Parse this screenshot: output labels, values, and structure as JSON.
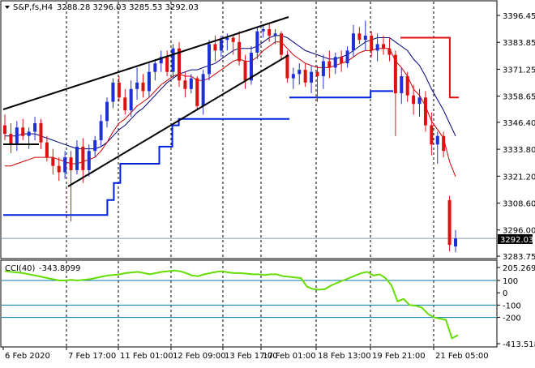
{
  "header": {
    "symbol_text": "S&P,fs,H4",
    "ohlc_text": "3288.28 3296.03 3285.53 3292.03"
  },
  "cci_header": {
    "label": "CCI(40)",
    "value": "-343.8099"
  },
  "colors": {
    "bull_candle": "#1f2fd6",
    "bear_candle": "#e01010",
    "ma_fast": "#cc0000",
    "ma_slow": "#00007a",
    "support_step": "#0020e0",
    "resistance_step": "#e01010",
    "trendline": "#000000",
    "cci_line": "#66dd00",
    "cci_level": "#0077aa",
    "grid_dashed": "#000000",
    "current_price_bg": "#000000",
    "current_price_fg": "#ffffff"
  },
  "chart_data": [
    {
      "type": "candlestick",
      "title": "S&P,fs,H4",
      "ylim": [
        3283.75,
        3396.45
      ],
      "y_ticks": [
        "3396.45",
        "3383.85",
        "3371.25",
        "3358.65",
        "3346.40",
        "3333.80",
        "3321.20",
        "3308.60",
        "3296.00",
        "3283.75"
      ],
      "current_price_label": "3292.03",
      "current_price": 3292.03,
      "x_labels": [
        "6 Feb 2020",
        "7 Feb 17:00",
        "11 Feb 01:00",
        "12 Feb 09:00",
        "13 Feb 17:00",
        "17 Feb 01:00",
        "18 Feb 13:00",
        "19 Feb 21:00",
        "21 Feb 05:00"
      ],
      "candles": [
        [
          3345,
          3350,
          3338,
          3341
        ],
        [
          3341,
          3346,
          3332,
          3336
        ],
        [
          3336,
          3347,
          3333,
          3344
        ],
        [
          3344,
          3348,
          3338,
          3340
        ],
        [
          3340,
          3344,
          3334,
          3342
        ],
        [
          3342,
          3349,
          3338,
          3346
        ],
        [
          3346,
          3348,
          3334,
          3337
        ],
        [
          3337,
          3340,
          3328,
          3330
        ],
        [
          3330,
          3334,
          3322,
          3326
        ],
        [
          3326,
          3330,
          3319,
          3323
        ],
        [
          3323,
          3333,
          3320,
          3330
        ],
        [
          3330,
          3333,
          3300,
          3324
        ],
        [
          3324,
          3338,
          3322,
          3335
        ],
        [
          3335,
          3339,
          3318,
          3324
        ],
        [
          3324,
          3336,
          3321,
          3333
        ],
        [
          3333,
          3340,
          3330,
          3338
        ],
        [
          3338,
          3350,
          3335,
          3347
        ],
        [
          3347,
          3358,
          3344,
          3356
        ],
        [
          3356,
          3367,
          3353,
          3365
        ],
        [
          3365,
          3368,
          3356,
          3358
        ],
        [
          3358,
          3362,
          3350,
          3352
        ],
        [
          3352,
          3366,
          3349,
          3362
        ],
        [
          3362,
          3372,
          3357,
          3365
        ],
        [
          3365,
          3369,
          3358,
          3361
        ],
        [
          3361,
          3374,
          3358,
          3370
        ],
        [
          3370,
          3376,
          3366,
          3374
        ],
        [
          3374,
          3380,
          3370,
          3377
        ],
        [
          3377,
          3380,
          3368,
          3370
        ],
        [
          3370,
          3383,
          3367,
          3381
        ],
        [
          3381,
          3384,
          3363,
          3366
        ],
        [
          3366,
          3370,
          3358,
          3362
        ],
        [
          3362,
          3369,
          3360,
          3367
        ],
        [
          3367,
          3368,
          3352,
          3354
        ],
        [
          3354,
          3371,
          3350,
          3369
        ],
        [
          3369,
          3385,
          3366,
          3383
        ],
        [
          3383,
          3387,
          3375,
          3380
        ],
        [
          3380,
          3387,
          3377,
          3385
        ],
        [
          3385,
          3388,
          3380,
          3386
        ],
        [
          3386,
          3387,
          3378,
          3384
        ],
        [
          3384,
          3389,
          3373,
          3375
        ],
        [
          3375,
          3378,
          3362,
          3366
        ],
        [
          3366,
          3382,
          3364,
          3379
        ],
        [
          3379,
          3391,
          3376,
          3389
        ],
        [
          3389,
          3392,
          3386,
          3390
        ],
        [
          3390,
          3393,
          3384,
          3387
        ],
        [
          3387,
          3390,
          3383,
          3388
        ],
        [
          3388,
          3389,
          3376,
          3378
        ],
        [
          3378,
          3380,
          3365,
          3367
        ],
        [
          3367,
          3372,
          3362,
          3369
        ],
        [
          3369,
          3374,
          3364,
          3371
        ],
        [
          3371,
          3374,
          3363,
          3365
        ],
        [
          3365,
          3373,
          3360,
          3370
        ],
        [
          3370,
          3373,
          3356,
          3368
        ],
        [
          3368,
          3378,
          3362,
          3375
        ],
        [
          3375,
          3380,
          3367,
          3372
        ],
        [
          3372,
          3379,
          3369,
          3377
        ],
        [
          3377,
          3380,
          3370,
          3374
        ],
        [
          3374,
          3382,
          3372,
          3380
        ],
        [
          3380,
          3392,
          3377,
          3388
        ],
        [
          3388,
          3391,
          3383,
          3385
        ],
        [
          3385,
          3394,
          3380,
          3387
        ],
        [
          3387,
          3389,
          3377,
          3380
        ],
        [
          3380,
          3388,
          3375,
          3383
        ],
        [
          3383,
          3387,
          3378,
          3381
        ],
        [
          3381,
          3386,
          3375,
          3378
        ],
        [
          3378,
          3380,
          3340,
          3360
        ],
        [
          3360,
          3372,
          3355,
          3368
        ],
        [
          3368,
          3370,
          3356,
          3359
        ],
        [
          3359,
          3364,
          3350,
          3355
        ],
        [
          3355,
          3362,
          3349,
          3358
        ],
        [
          3358,
          3361,
          3342,
          3345
        ],
        [
          3345,
          3351,
          3331,
          3336
        ],
        [
          3336,
          3342,
          3327,
          3340
        ],
        [
          3340,
          3342,
          3330,
          3333
        ],
        [
          3310,
          3312,
          3286,
          3289
        ],
        [
          3288.28,
          3296.03,
          3285.53,
          3292.03
        ]
      ],
      "ma_fast": [
        3326,
        3326,
        3327,
        3328,
        3329,
        3330,
        3330,
        3330,
        3330,
        3329,
        3328,
        3327,
        3327,
        3328,
        3329,
        3330,
        3333,
        3337,
        3342,
        3346,
        3348,
        3351,
        3354,
        3356,
        3358,
        3361,
        3364,
        3366,
        3368,
        3369,
        3368,
        3368,
        3366,
        3366,
        3367,
        3369,
        3371,
        3373,
        3375,
        3376,
        3375,
        3375,
        3377,
        3380,
        3382,
        3384,
        3384,
        3381,
        3378,
        3376,
        3374,
        3373,
        3372,
        3372,
        3372,
        3373,
        3374,
        3375,
        3377,
        3379,
        3380,
        3380,
        3381,
        3381,
        3381,
        3375,
        3372,
        3368,
        3362,
        3359,
        3354,
        3347,
        3343,
        3339,
        3328,
        3321
      ],
      "ma_slow": [
        3340,
        3340,
        3340,
        3341,
        3341,
        3341,
        3340,
        3339,
        3338,
        3337,
        3336,
        3335,
        3334,
        3334,
        3334,
        3334,
        3335,
        3337,
        3340,
        3343,
        3345,
        3348,
        3351,
        3353,
        3356,
        3359,
        3362,
        3365,
        3367,
        3369,
        3370,
        3371,
        3371,
        3372,
        3373,
        3374,
        3376,
        3378,
        3380,
        3381,
        3381,
        3381,
        3382,
        3384,
        3386,
        3387,
        3387,
        3386,
        3384,
        3382,
        3380,
        3379,
        3378,
        3377,
        3376,
        3376,
        3377,
        3378,
        3380,
        3382,
        3384,
        3385,
        3386,
        3386,
        3386,
        3384,
        3382,
        3380,
        3376,
        3373,
        3368,
        3362,
        3357,
        3352,
        3346,
        3340
      ],
      "support_step": [
        3340,
        3340,
        3340,
        3340,
        3340,
        3340,
        3340,
        3340,
        3340,
        3340,
        3340,
        3340,
        3340,
        3340,
        3340,
        3340,
        3340,
        3340,
        3340,
        3340,
        3340,
        3340,
        3340,
        3340,
        3340,
        3340,
        3340,
        3340,
        3340,
        3340,
        3340,
        3340,
        3340,
        3340,
        3340,
        3340,
        3340,
        3340,
        3340,
        3340,
        3340,
        3340,
        3358,
        3358,
        3358,
        3358,
        3358,
        3358,
        3358,
        3358,
        3358,
        3358,
        3358,
        3358,
        3358,
        3358,
        3358,
        3358,
        3358,
        3358,
        3361,
        3361,
        3361,
        3361,
        3361
      ],
      "resistance_step": [
        3386,
        3386,
        3386,
        3386,
        3386,
        3386,
        3386,
        3386,
        3386,
        3386,
        3386,
        3358,
        3358
      ],
      "trendline_points": [
        [
          3351,
          3396.5
        ],
        [
          3323,
          3376.5
        ]
      ],
      "support_lower_values": [
        3303,
        3303,
        3303,
        3303,
        3303,
        3303,
        3303,
        3303,
        3303,
        3303,
        3303,
        3303,
        3303,
        3303,
        3303,
        3303,
        3310,
        3318,
        3327,
        3327,
        3327,
        3327,
        3327,
        3327,
        3335,
        3335,
        3345,
        3348,
        3348,
        3348,
        3348,
        3348,
        3348,
        3348,
        3348,
        3348,
        3348,
        3348,
        3348,
        3348,
        3348,
        3348,
        3348,
        3348
      ]
    },
    {
      "type": "line",
      "title": "CCI(40) -343.8099",
      "ylim": [
        -413.5184,
        205.269
      ],
      "y_ticks": [
        "205.269",
        "100",
        "0",
        "-100",
        "-200",
        "-413.5184"
      ],
      "levels": [
        100,
        -100,
        -200
      ],
      "values": [
        176,
        170,
        165,
        160,
        150,
        140,
        130,
        120,
        110,
        100,
        100,
        105,
        100,
        105,
        110,
        120,
        130,
        140,
        145,
        150,
        160,
        165,
        170,
        160,
        150,
        160,
        170,
        175,
        180,
        175,
        160,
        140,
        135,
        150,
        160,
        170,
        175,
        165,
        160,
        160,
        155,
        150,
        150,
        145,
        150,
        150,
        135,
        130,
        125,
        120,
        50,
        30,
        25,
        30,
        60,
        80,
        100,
        120,
        140,
        160,
        170,
        140,
        150,
        120,
        60,
        -70,
        -50,
        -100,
        -105,
        -120,
        -170,
        -200,
        -210,
        -220,
        -370,
        -343.8
      ]
    }
  ]
}
